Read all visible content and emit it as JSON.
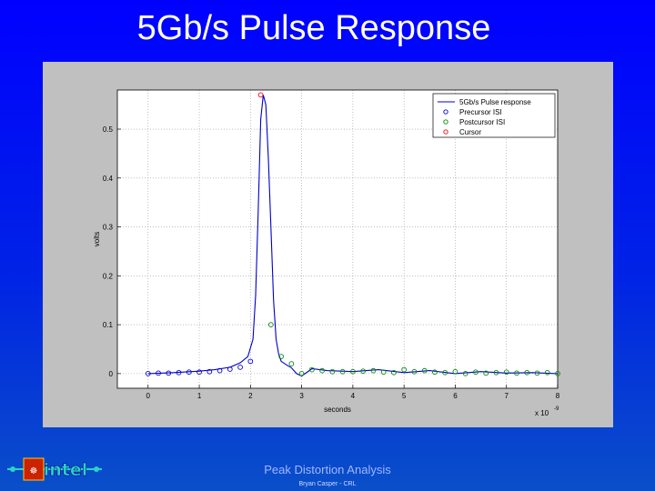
{
  "slide": {
    "title": "5Gb/s Pulse Response",
    "footer_title": "Peak Distortion Analysis",
    "footer_author": "Bryan Casper - CRL",
    "logo_text": "intel"
  },
  "chart_data": {
    "type": "line",
    "xlabel": "seconds",
    "ylabel": "volts",
    "x_exponent_label": "x 10",
    "x_exponent": "-9",
    "xlim": [
      -0.6,
      8.0
    ],
    "ylim": [
      -0.03,
      0.58
    ],
    "xticks": [
      0,
      1,
      2,
      3,
      4,
      5,
      6,
      7,
      8
    ],
    "xtick_labels": [
      "0",
      "1",
      "2",
      "3",
      "4",
      "5",
      "6",
      "7",
      "8"
    ],
    "yticks": [
      0,
      0.1,
      0.2,
      0.3,
      0.4,
      0.5
    ],
    "ytick_labels": [
      "0",
      "0.1",
      "0.2",
      "0.3",
      "0.4",
      "0.5"
    ],
    "grid": true,
    "legend_position": "top-right",
    "colors": {
      "pulse": "#0000cc",
      "precursor": "#0000cc",
      "postcursor": "#008800",
      "cursor": "#ff0000"
    },
    "legend": [
      "5Gb/s Pulse response",
      "Precursor ISI",
      "Postcursor ISI",
      "Cursor"
    ],
    "pulse": {
      "name": "5Gb/s Pulse response",
      "x": [
        0,
        0.5,
        1.0,
        1.3,
        1.6,
        1.8,
        1.95,
        2.05,
        2.1,
        2.15,
        2.2,
        2.25,
        2.3,
        2.35,
        2.4,
        2.45,
        2.5,
        2.55,
        2.6,
        2.7,
        2.8,
        2.9,
        3.0,
        3.2,
        3.5,
        4.0,
        4.5,
        5.0,
        5.5,
        6.0,
        6.5,
        7.0,
        7.5,
        8.0
      ],
      "y": [
        0.0,
        0.002,
        0.005,
        0.008,
        0.013,
        0.022,
        0.035,
        0.07,
        0.16,
        0.33,
        0.52,
        0.57,
        0.55,
        0.44,
        0.3,
        0.15,
        0.07,
        0.04,
        0.025,
        0.018,
        0.012,
        0.0,
        -0.005,
        0.01,
        0.006,
        0.004,
        0.008,
        0.002,
        0.006,
        0.0,
        0.004,
        0.001,
        0.002,
        0.0
      ]
    },
    "precursor": {
      "name": "Precursor ISI",
      "x": [
        0,
        0.2,
        0.4,
        0.6,
        0.8,
        1.0,
        1.2,
        1.4,
        1.6,
        1.8,
        2.0
      ],
      "y": [
        0.0,
        0.001,
        0.001,
        0.002,
        0.003,
        0.003,
        0.004,
        0.006,
        0.009,
        0.013,
        0.025
      ]
    },
    "postcursor": {
      "name": "Postcursor ISI",
      "x": [
        2.4,
        2.6,
        2.8,
        3.0,
        3.2,
        3.4,
        3.6,
        3.8,
        4.0,
        4.2,
        4.4,
        4.6,
        4.8,
        5.0,
        5.2,
        5.4,
        5.6,
        5.8,
        6.0,
        6.2,
        6.4,
        6.6,
        6.8,
        7.0,
        7.2,
        7.4,
        7.6,
        7.8,
        8.0
      ],
      "y": [
        0.1,
        0.035,
        0.02,
        0.0,
        0.008,
        0.006,
        0.004,
        0.004,
        0.004,
        0.005,
        0.006,
        0.003,
        0.002,
        0.008,
        0.004,
        0.006,
        0.003,
        0.002,
        0.004,
        0.0,
        0.003,
        0.001,
        0.002,
        0.003,
        0.001,
        0.002,
        0.001,
        0.002,
        0.0
      ]
    },
    "cursor": {
      "name": "Cursor",
      "x": [
        2.2
      ],
      "y": [
        0.57
      ]
    }
  }
}
